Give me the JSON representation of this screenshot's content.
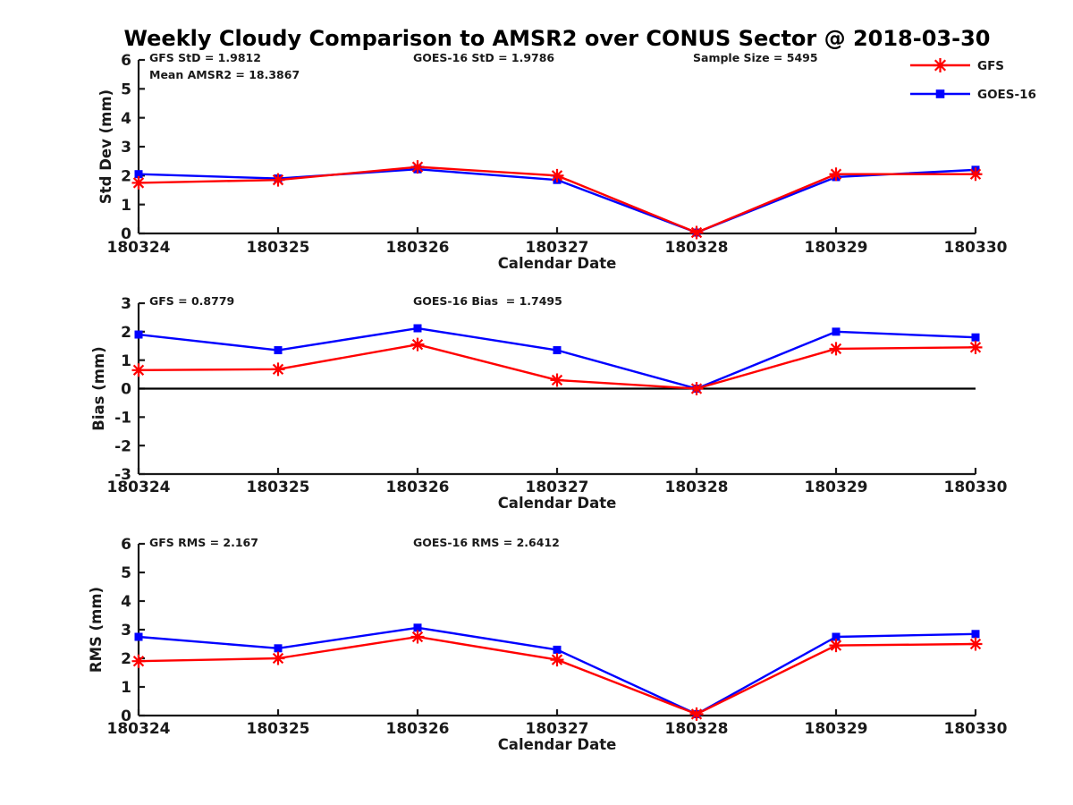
{
  "title": "Weekly Cloudy Comparison to AMSR2 over CONUS Sector @ 2018-03-30",
  "colors": {
    "gfs": "#ff0000",
    "goes16": "#0000ff",
    "axis": "#1a1a1a",
    "zero_line": "#000000"
  },
  "legend": {
    "items": [
      {
        "label": "GFS",
        "marker": "asterisk",
        "color": "#ff0000"
      },
      {
        "label": "GOES-16",
        "marker": "square",
        "color": "#0000ff"
      }
    ]
  },
  "chart_data": [
    {
      "id": "std-dev",
      "type": "line",
      "ylabel": "Std Dev (mm)",
      "xlabel": "Calendar Date",
      "ylim": [
        0,
        6
      ],
      "yticks": [
        0,
        1,
        2,
        3,
        4,
        5,
        6
      ],
      "grid": false,
      "zero_line": false,
      "categories": [
        "180324",
        "180325",
        "180326",
        "180327",
        "180328",
        "180329",
        "180330"
      ],
      "series": [
        {
          "name": "GFS",
          "color": "#ff0000",
          "marker": "asterisk",
          "values": [
            1.75,
            1.85,
            2.3,
            2.0,
            0.03,
            2.05,
            2.05
          ]
        },
        {
          "name": "GOES-16",
          "color": "#0000ff",
          "marker": "square",
          "values": [
            2.05,
            1.9,
            2.22,
            1.85,
            0.03,
            1.95,
            2.2
          ]
        }
      ],
      "annotations": [
        {
          "slot": "left",
          "lines": [
            "GFS StD = 1.9812",
            "Mean AMSR2 = 18.3867"
          ]
        },
        {
          "slot": "center",
          "lines": [
            "GOES-16 StD = 1.9786"
          ]
        },
        {
          "slot": "right",
          "lines": [
            "Sample Size = 5495"
          ]
        }
      ]
    },
    {
      "id": "bias",
      "type": "line",
      "ylabel": "Bias (mm)",
      "xlabel": "Calendar Date",
      "ylim": [
        -3,
        3
      ],
      "yticks": [
        -3,
        -2,
        -1,
        0,
        1,
        2,
        3
      ],
      "grid": false,
      "zero_line": true,
      "categories": [
        "180324",
        "180325",
        "180326",
        "180327",
        "180328",
        "180329",
        "180330"
      ],
      "series": [
        {
          "name": "GFS",
          "color": "#ff0000",
          "marker": "asterisk",
          "values": [
            0.65,
            0.68,
            1.55,
            0.3,
            0.0,
            1.4,
            1.45
          ]
        },
        {
          "name": "GOES-16",
          "color": "#0000ff",
          "marker": "square",
          "values": [
            1.9,
            1.35,
            2.12,
            1.35,
            0.0,
            2.0,
            1.8
          ]
        }
      ],
      "annotations": [
        {
          "slot": "left",
          "lines": [
            "GFS = 0.8779"
          ]
        },
        {
          "slot": "center",
          "lines": [
            "GOES-16 Bias  = 1.7495"
          ]
        }
      ]
    },
    {
      "id": "rms",
      "type": "line",
      "ylabel": "RMS (mm)",
      "xlabel": "Calendar Date",
      "ylim": [
        0,
        6
      ],
      "yticks": [
        0,
        1,
        2,
        3,
        4,
        5,
        6
      ],
      "grid": false,
      "zero_line": false,
      "categories": [
        "180324",
        "180325",
        "180326",
        "180327",
        "180328",
        "180329",
        "180330"
      ],
      "series": [
        {
          "name": "GFS",
          "color": "#ff0000",
          "marker": "asterisk",
          "values": [
            1.9,
            2.0,
            2.75,
            1.95,
            0.05,
            2.45,
            2.5
          ]
        },
        {
          "name": "GOES-16",
          "color": "#0000ff",
          "marker": "square",
          "values": [
            2.75,
            2.35,
            3.07,
            2.3,
            0.05,
            2.75,
            2.85
          ]
        }
      ],
      "annotations": [
        {
          "slot": "left",
          "lines": [
            "GFS RMS = 2.167"
          ]
        },
        {
          "slot": "center",
          "lines": [
            "GOES-16 RMS = 2.6412"
          ]
        }
      ]
    }
  ]
}
